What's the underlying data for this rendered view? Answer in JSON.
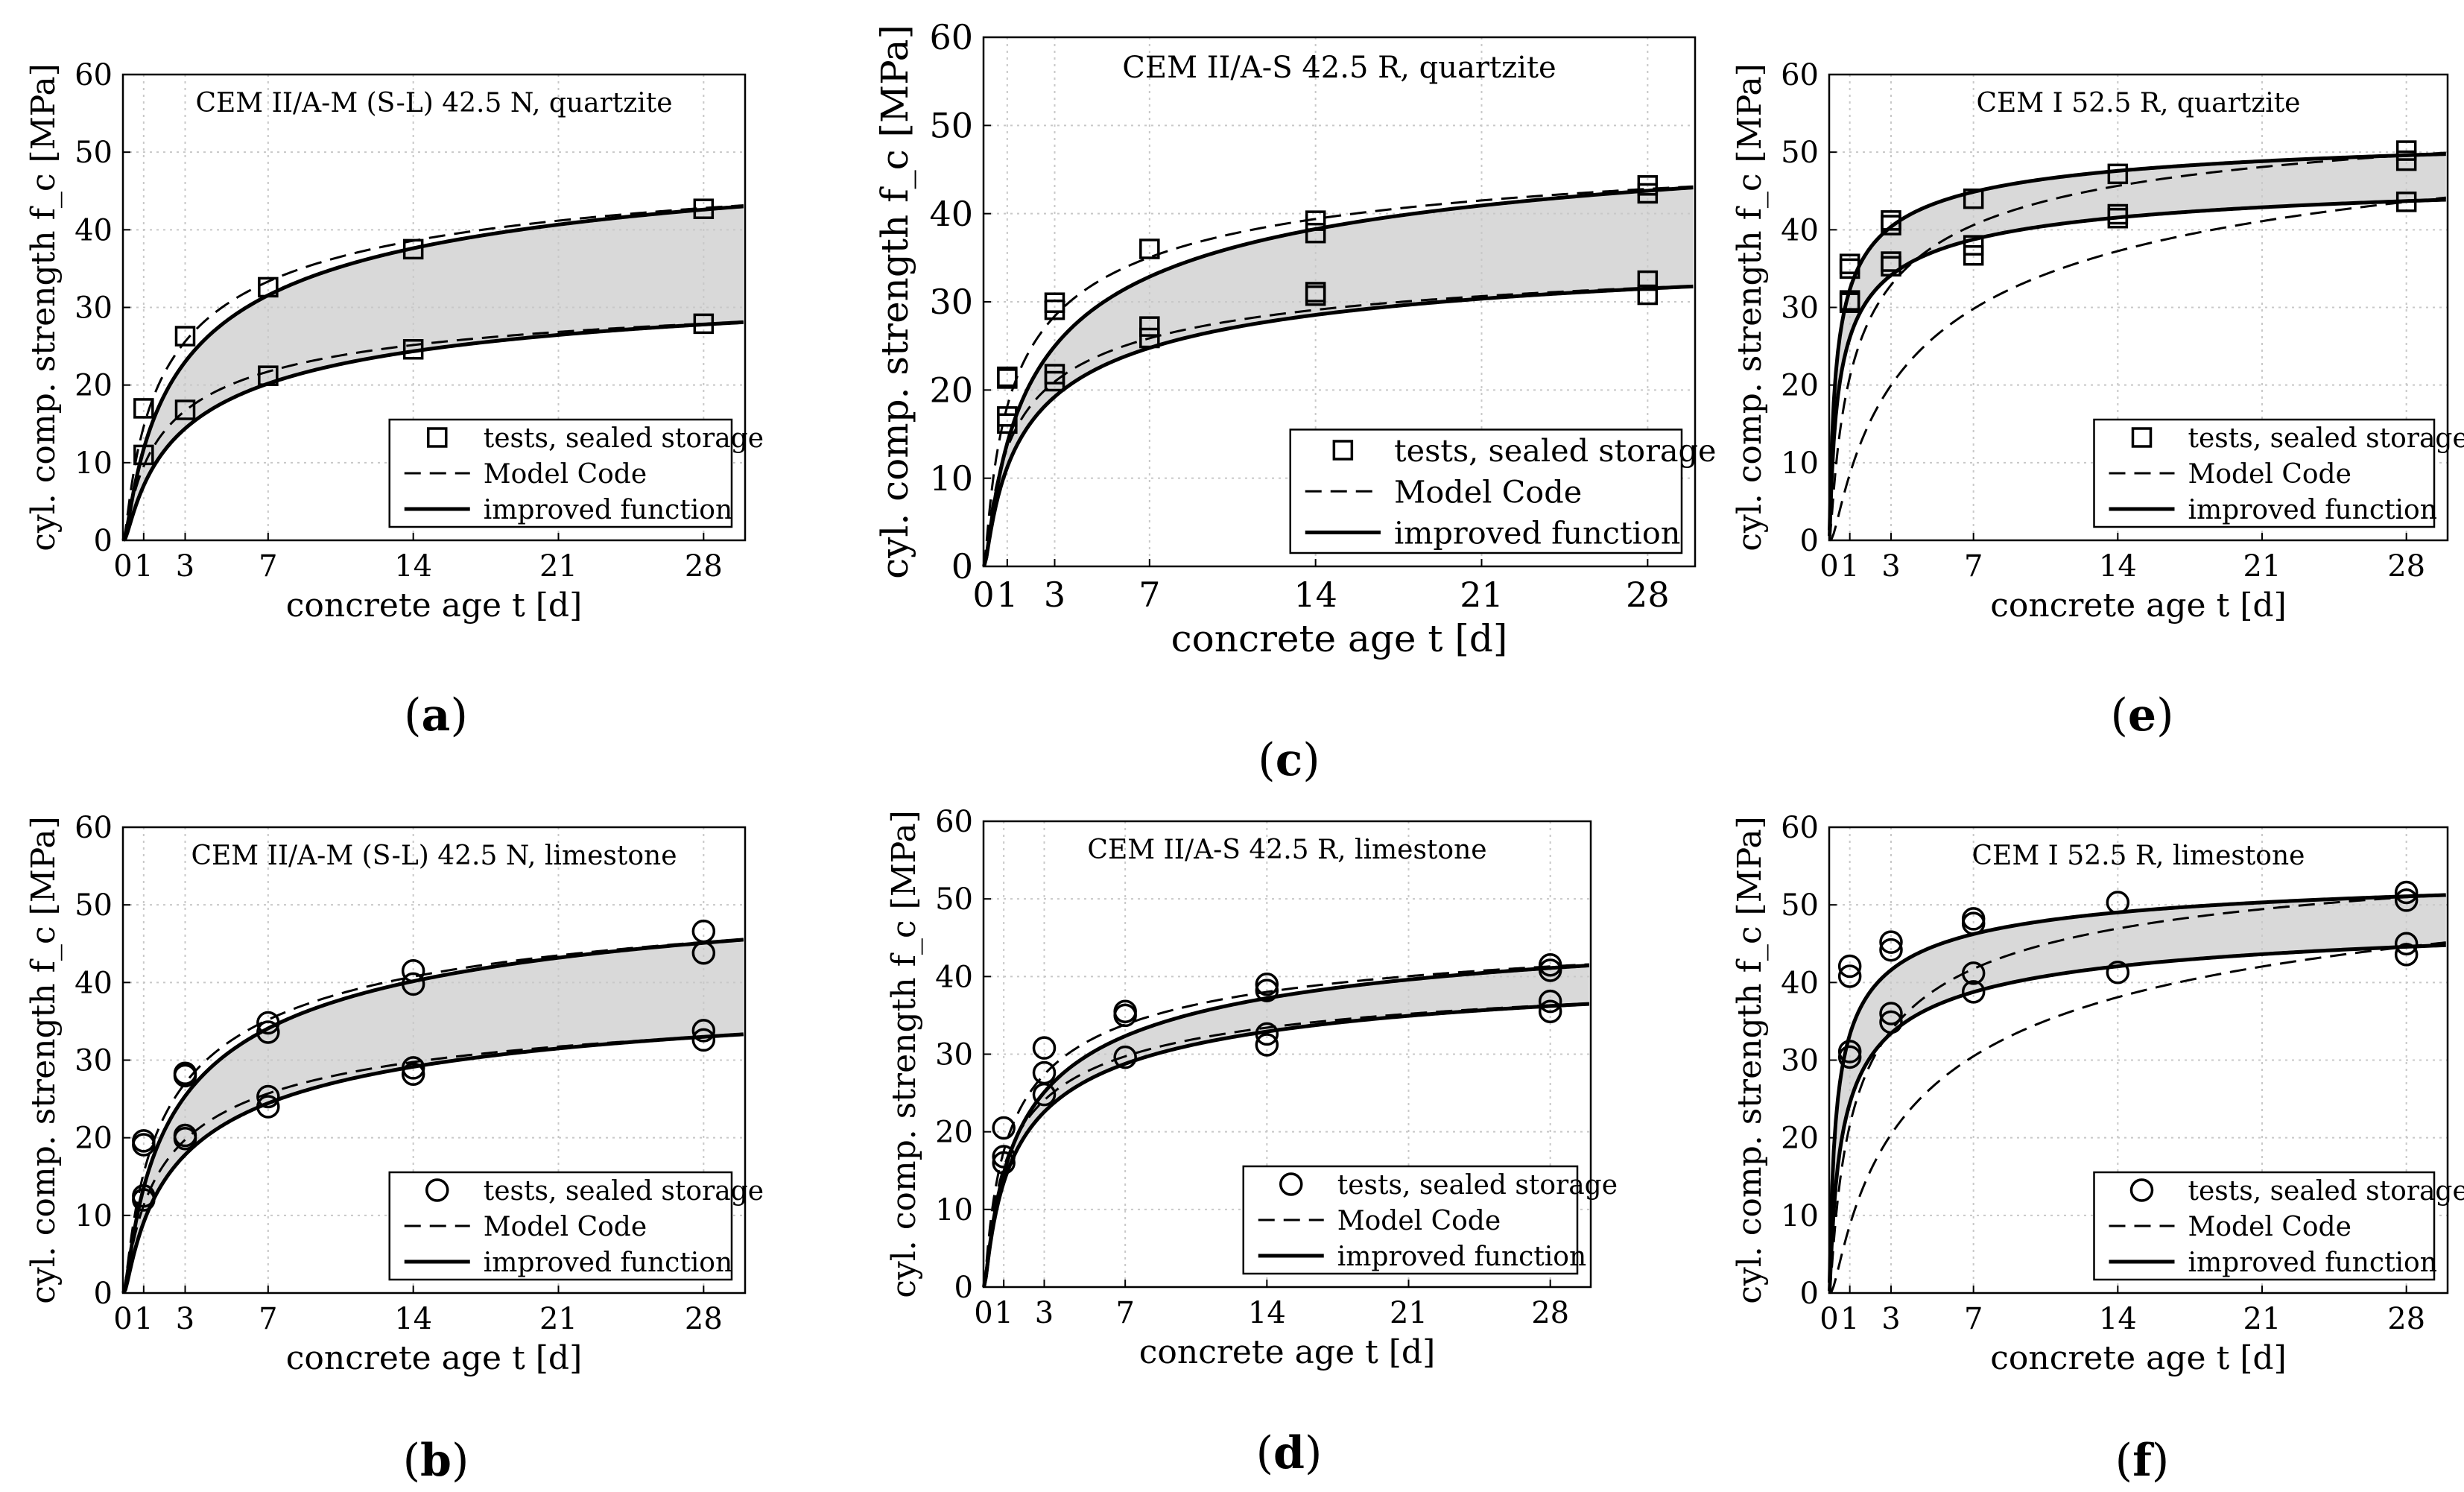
{
  "colors": {
    "band": "#d9d9d9",
    "grid": "#c8c8c8",
    "ink": "#000000",
    "background": "#ffffff"
  },
  "chart_data": [
    {
      "panel": "(a)",
      "type": "line",
      "title": "CEM II/A-M (S-L) 42.5 N, quartzite",
      "xlabel": "concrete age t [d]",
      "ylabel": "cyl. comp. strength f_c [MPa]",
      "xlim": [
        0,
        30
      ],
      "ylim": [
        0,
        60
      ],
      "xticks": [
        0,
        1,
        3,
        7,
        14,
        21,
        28
      ],
      "yticks": [
        0,
        10,
        20,
        30,
        40,
        50,
        60
      ],
      "grid": true,
      "marker": "square",
      "legend_position": "lower-right",
      "legend": [
        "tests, sealed storage",
        "Model Code",
        "improved function"
      ],
      "series": [
        {
          "name": "tests upper",
          "x": [
            1,
            3,
            7,
            14,
            28
          ],
          "y": [
            17,
            26.3,
            32.6,
            37.5,
            42.7
          ]
        },
        {
          "name": "tests lower",
          "x": [
            1,
            3,
            7,
            14,
            28
          ],
          "y": [
            11,
            16.8,
            21.2,
            24.6,
            27.9
          ]
        },
        {
          "name": "Model Code upper",
          "s": 0.25,
          "fc28": 42.8
        },
        {
          "name": "Model Code lower",
          "s": 0.25,
          "fc28": 27.9
        },
        {
          "name": "improved upper",
          "s": 0.3,
          "fc28": 42.6
        },
        {
          "name": "improved lower",
          "s": 0.32,
          "fc28": 27.8
        }
      ]
    },
    {
      "panel": "(b)",
      "type": "line",
      "title": "CEM II/A-M (S-L) 42.5 N, limestone",
      "xlabel": "concrete age t [d]",
      "ylabel": "cyl. comp. strength f_c [MPa]",
      "xlim": [
        0,
        30
      ],
      "ylim": [
        0,
        60
      ],
      "xticks": [
        0,
        1,
        3,
        7,
        14,
        21,
        28
      ],
      "yticks": [
        0,
        10,
        20,
        30,
        40,
        50,
        60
      ],
      "grid": true,
      "marker": "circle",
      "legend_position": "lower-right",
      "legend": [
        "tests, sealed storage",
        "Model Code",
        "improved function"
      ],
      "series": [
        {
          "name": "tests upper",
          "x": [
            1,
            1,
            3,
            3,
            7,
            7,
            14,
            14,
            28,
            28
          ],
          "y": [
            19.1,
            19.6,
            28.0,
            28.3,
            33.6,
            34.8,
            39.8,
            41.5,
            43.8,
            46.6
          ]
        },
        {
          "name": "tests lower",
          "x": [
            1,
            1,
            3,
            3,
            7,
            7,
            14,
            14,
            28,
            28
          ],
          "y": [
            12.0,
            12.5,
            19.9,
            20.3,
            24.0,
            25.3,
            28.2,
            29.0,
            32.6,
            33.8
          ]
        },
        {
          "name": "Model Code upper",
          "s": 0.25,
          "fc28": 45.2
        },
        {
          "name": "Model Code lower",
          "s": 0.25,
          "fc28": 33.0
        },
        {
          "name": "improved upper",
          "s": 0.28,
          "fc28": 45.1
        },
        {
          "name": "improved lower",
          "s": 0.3,
          "fc28": 33.0
        }
      ]
    },
    {
      "panel": "(c)",
      "type": "line",
      "title": "CEM II/A-S 42.5 R, quartzite",
      "xlabel": "concrete age t [d]",
      "ylabel": "cyl. comp. strength f_c [MPa]",
      "xlim": [
        0,
        30
      ],
      "ylim": [
        0,
        60
      ],
      "xticks": [
        0,
        1,
        3,
        7,
        14,
        21,
        28
      ],
      "yticks": [
        0,
        10,
        20,
        30,
        40,
        50,
        60
      ],
      "grid": true,
      "marker": "square",
      "legend_position": "lower-right",
      "legend": [
        "tests, sealed storage",
        "Model Code",
        "improved function"
      ],
      "series": [
        {
          "name": "tests upper",
          "x": [
            1,
            1,
            3,
            3,
            7,
            14,
            14,
            28,
            28
          ],
          "y": [
            21.3,
            21.5,
            29.1,
            29.9,
            36.0,
            37.8,
            39.2,
            42.3,
            43.2
          ]
        },
        {
          "name": "tests lower",
          "x": [
            1,
            1,
            3,
            3,
            7,
            7,
            14,
            14,
            28,
            28
          ],
          "y": [
            16.2,
            17.0,
            21.0,
            21.8,
            25.9,
            27.2,
            30.7,
            31.1,
            30.8,
            32.4
          ]
        },
        {
          "name": "Model Code upper",
          "s": 0.2,
          "fc28": 42.8
        },
        {
          "name": "Model Code lower",
          "s": 0.2,
          "fc28": 31.6
        },
        {
          "name": "improved upper",
          "s": 0.26,
          "fc28": 42.6
        },
        {
          "name": "improved lower",
          "s": 0.24,
          "fc28": 31.5
        }
      ]
    },
    {
      "panel": "(d)",
      "type": "line",
      "title": "CEM II/A-S 42.5 R, limestone",
      "xlabel": "concrete age t [d]",
      "ylabel": "cyl. comp. strength f_c [MPa]",
      "xlim": [
        0,
        30
      ],
      "ylim": [
        0,
        60
      ],
      "xticks": [
        0,
        1,
        3,
        7,
        14,
        21,
        28
      ],
      "yticks": [
        0,
        10,
        20,
        30,
        40,
        50,
        60
      ],
      "grid": true,
      "marker": "circle",
      "legend_position": "lower-right",
      "legend": [
        "tests, sealed storage",
        "Model Code",
        "improved function"
      ],
      "series": [
        {
          "name": "tests upper",
          "x": [
            1,
            3,
            3,
            7,
            7,
            14,
            14,
            28,
            28
          ],
          "y": [
            20.5,
            27.6,
            30.8,
            35.0,
            35.5,
            38.2,
            39.0,
            40.8,
            41.5
          ]
        },
        {
          "name": "tests lower",
          "x": [
            1,
            1,
            3,
            7,
            14,
            14,
            28,
            28
          ],
          "y": [
            16.0,
            16.8,
            24.8,
            29.6,
            31.2,
            32.6,
            35.5,
            36.8
          ]
        },
        {
          "name": "Model Code upper",
          "s": 0.2,
          "fc28": 41.3
        },
        {
          "name": "Model Code lower",
          "s": 0.2,
          "fc28": 36.3
        },
        {
          "name": "improved upper",
          "s": 0.24,
          "fc28": 41.1
        },
        {
          "name": "improved lower",
          "s": 0.23,
          "fc28": 36.2
        }
      ]
    },
    {
      "panel": "(e)",
      "type": "line",
      "title": "CEM I 52.5 R, quartzite",
      "xlabel": "concrete age t [d]",
      "ylabel": "cyl. comp. strength f_c [MPa]",
      "xlim": [
        0,
        30
      ],
      "ylim": [
        0,
        60
      ],
      "xticks": [
        0,
        1,
        3,
        7,
        14,
        21,
        28
      ],
      "yticks": [
        0,
        10,
        20,
        30,
        40,
        50,
        60
      ],
      "grid": true,
      "marker": "square",
      "legend_position": "lower-right",
      "legend": [
        "tests, sealed storage",
        "Model Code",
        "improved function"
      ],
      "series": [
        {
          "name": "tests upper",
          "x": [
            1,
            1,
            3,
            3,
            7,
            14,
            28,
            28
          ],
          "y": [
            35.0,
            35.6,
            40.6,
            41.2,
            44.0,
            47.2,
            48.9,
            50.2
          ]
        },
        {
          "name": "tests lower",
          "x": [
            1,
            1,
            3,
            3,
            7,
            7,
            14,
            14,
            28
          ],
          "y": [
            30.6,
            30.9,
            35.3,
            35.9,
            36.7,
            38.0,
            41.5,
            42.0,
            43.6
          ]
        },
        {
          "name": "Model Code upper",
          "s": 0.2,
          "fc28": 49.6
        },
        {
          "name": "Model Code lower",
          "s": 0.38,
          "fc28": 43.6
        },
        {
          "name": "improved upper",
          "s": 0.1,
          "fc28": 49.6
        },
        {
          "name": "improved lower",
          "s": 0.12,
          "fc28": 43.7
        }
      ]
    },
    {
      "panel": "(f)",
      "type": "line",
      "title": "CEM I 52.5 R, limestone",
      "xlabel": "concrete age t [d]",
      "ylabel": "cyl. comp. strength f_c [MPa]",
      "xlim": [
        0,
        30
      ],
      "ylim": [
        0,
        60
      ],
      "xticks": [
        0,
        1,
        3,
        7,
        14,
        21,
        28
      ],
      "yticks": [
        0,
        10,
        20,
        30,
        40,
        50,
        60
      ],
      "grid": true,
      "marker": "circle",
      "legend_position": "lower-right",
      "legend": [
        "tests, sealed storage",
        "Model Code",
        "improved function"
      ],
      "series": [
        {
          "name": "tests upper",
          "x": [
            1,
            1,
            3,
            3,
            7,
            7,
            14,
            28,
            28
          ],
          "y": [
            40.8,
            42.1,
            44.2,
            45.2,
            47.6,
            48.2,
            50.3,
            50.6,
            51.6
          ]
        },
        {
          "name": "tests lower",
          "x": [
            1,
            1,
            3,
            3,
            7,
            7,
            14,
            28,
            28
          ],
          "y": [
            30.4,
            31.1,
            34.9,
            36.0,
            38.8,
            41.2,
            41.3,
            43.6,
            45.0
          ]
        },
        {
          "name": "Model Code upper",
          "s": 0.2,
          "fc28": 51.0
        },
        {
          "name": "Model Code lower",
          "s": 0.38,
          "fc28": 44.6
        },
        {
          "name": "improved upper",
          "s": 0.1,
          "fc28": 51.1
        },
        {
          "name": "improved lower",
          "s": 0.14,
          "fc28": 44.6
        }
      ]
    }
  ]
}
